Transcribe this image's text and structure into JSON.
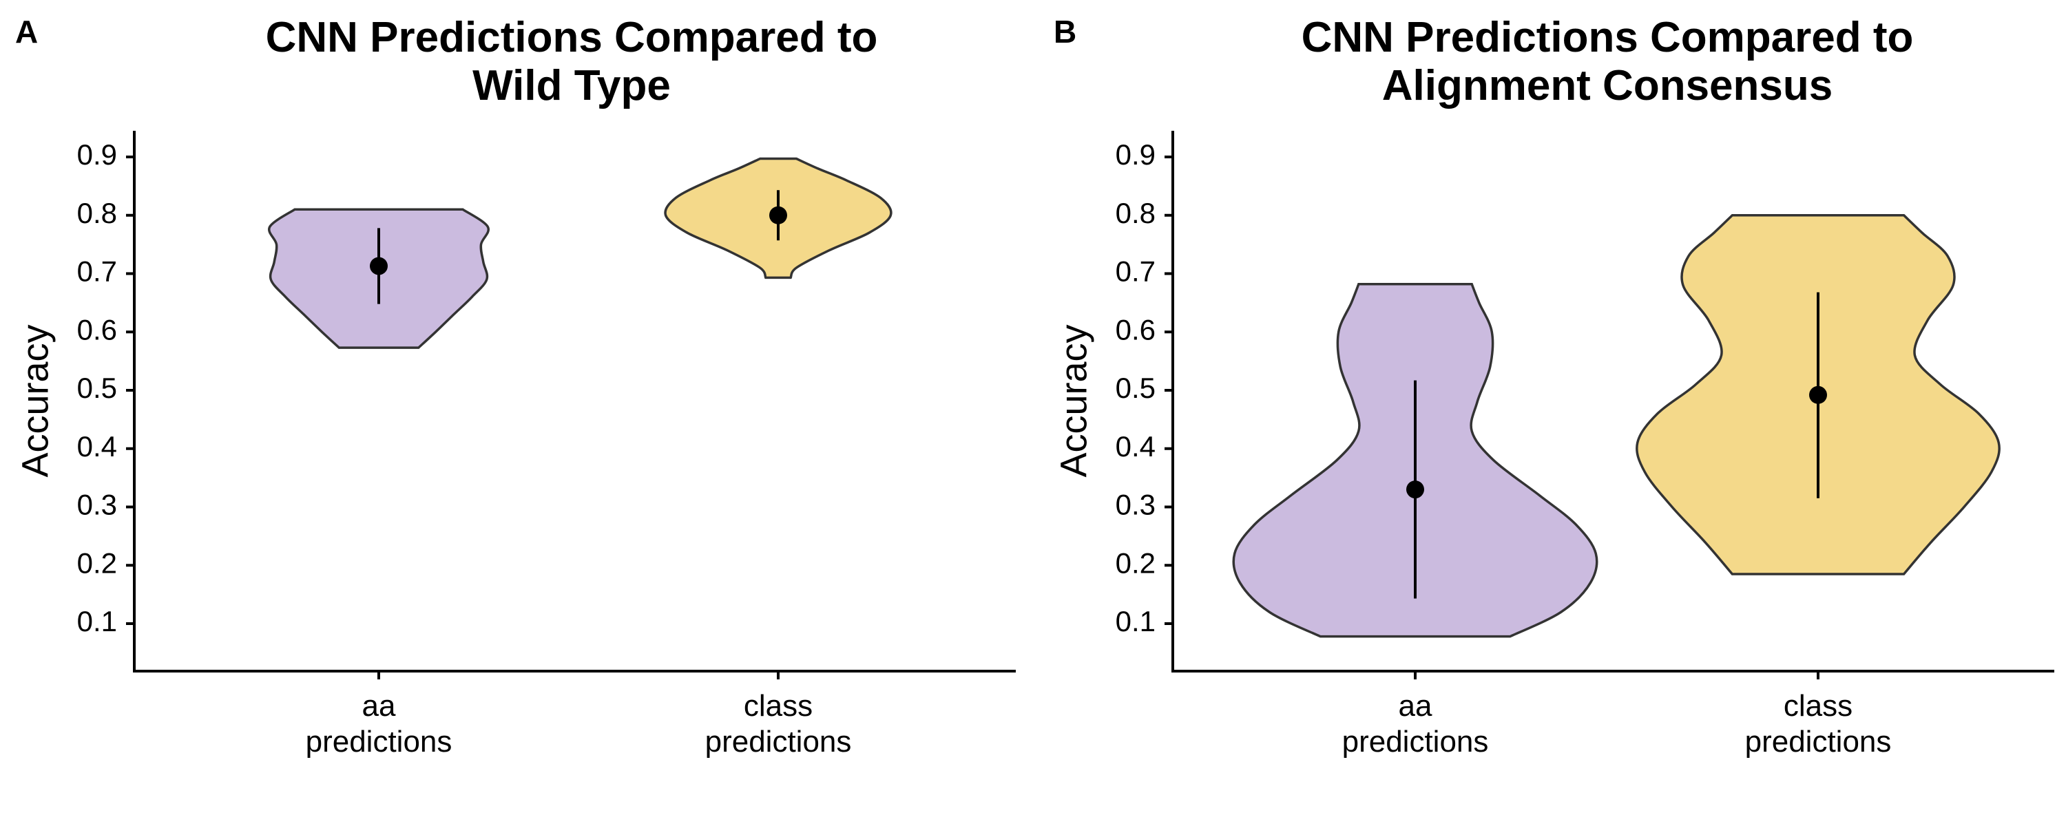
{
  "colors": {
    "aa_fill": "#CBBBDF",
    "class_fill": "#F4D98A",
    "outline": "#333333",
    "point": "#000000"
  },
  "chart_data": [
    {
      "panel_label": "A",
      "type": "violin",
      "title": [
        "CNN Predictions Compared to",
        "Wild Type"
      ],
      "xlabel": "",
      "ylabel": "Accuracy",
      "ylim": [
        0.02,
        0.94
      ],
      "yticks": [
        "0.1",
        "0.2",
        "0.3",
        "0.4",
        "0.5",
        "0.6",
        "0.7",
        "0.8",
        "0.9"
      ],
      "grid": false,
      "categories": [
        [
          "aa",
          "predictions"
        ],
        [
          "class",
          "predictions"
        ]
      ],
      "violins": [
        {
          "fill_key": "aa_fill",
          "min": 0.573,
          "max": 0.81,
          "mean": 0.713,
          "range_low": 0.648,
          "range_high": 0.778,
          "profile": [
            [
              0.573,
              0.35
            ],
            [
              0.6,
              0.5
            ],
            [
              0.63,
              0.66
            ],
            [
              0.66,
              0.82
            ],
            [
              0.69,
              0.95
            ],
            [
              0.72,
              0.92
            ],
            [
              0.75,
              0.9
            ],
            [
              0.78,
              0.96
            ],
            [
              0.81,
              0.74
            ]
          ]
        },
        {
          "fill_key": "class_fill",
          "min": 0.693,
          "max": 0.897,
          "mean": 0.8,
          "range_low": 0.757,
          "range_high": 0.843,
          "profile": [
            [
              0.693,
              0.11
            ],
            [
              0.71,
              0.16
            ],
            [
              0.74,
              0.45
            ],
            [
              0.77,
              0.8
            ],
            [
              0.8,
              0.99
            ],
            [
              0.83,
              0.9
            ],
            [
              0.86,
              0.6
            ],
            [
              0.88,
              0.35
            ],
            [
              0.897,
              0.16
            ]
          ]
        }
      ]
    },
    {
      "panel_label": "B",
      "type": "violin",
      "title": [
        "CNN Predictions Compared to",
        "Alignment Consensus"
      ],
      "xlabel": "",
      "ylabel": "Accuracy",
      "ylim": [
        0.02,
        0.94
      ],
      "yticks": [
        "0.1",
        "0.2",
        "0.3",
        "0.4",
        "0.5",
        "0.6",
        "0.7",
        "0.8",
        "0.9"
      ],
      "grid": false,
      "categories": [
        [
          "aa",
          "predictions"
        ],
        [
          "class",
          "predictions"
        ]
      ],
      "violins": [
        {
          "fill_key": "aa_fill",
          "min": 0.078,
          "max": 0.682,
          "mean": 0.33,
          "range_low": 0.143,
          "range_high": 0.517,
          "profile": [
            [
              0.078,
              0.52
            ],
            [
              0.12,
              0.8
            ],
            [
              0.17,
              0.96
            ],
            [
              0.22,
              0.99
            ],
            [
              0.27,
              0.88
            ],
            [
              0.32,
              0.68
            ],
            [
              0.38,
              0.43
            ],
            [
              0.43,
              0.31
            ],
            [
              0.48,
              0.34
            ],
            [
              0.54,
              0.41
            ],
            [
              0.6,
              0.42
            ],
            [
              0.65,
              0.35
            ],
            [
              0.682,
              0.31
            ]
          ]
        },
        {
          "fill_key": "class_fill",
          "min": 0.185,
          "max": 0.8,
          "mean": 0.492,
          "range_low": 0.315,
          "range_high": 0.668,
          "profile": [
            [
              0.185,
              0.47
            ],
            [
              0.24,
              0.62
            ],
            [
              0.3,
              0.8
            ],
            [
              0.36,
              0.95
            ],
            [
              0.41,
              0.99
            ],
            [
              0.46,
              0.88
            ],
            [
              0.51,
              0.67
            ],
            [
              0.56,
              0.53
            ],
            [
              0.62,
              0.6
            ],
            [
              0.68,
              0.74
            ],
            [
              0.73,
              0.71
            ],
            [
              0.77,
              0.57
            ],
            [
              0.8,
              0.47
            ]
          ]
        }
      ]
    }
  ]
}
